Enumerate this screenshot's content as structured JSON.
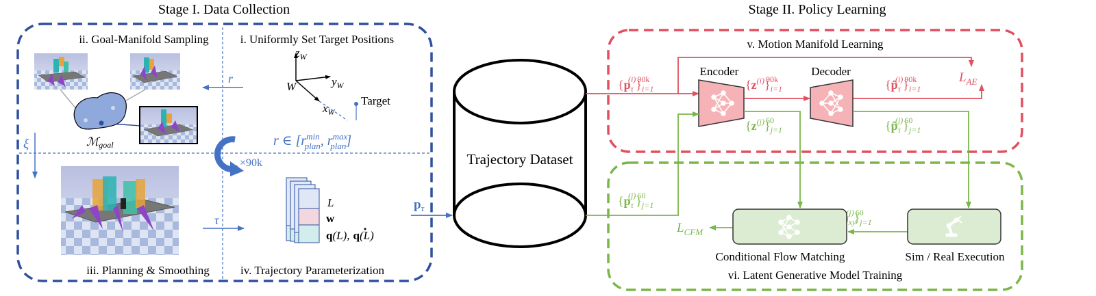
{
  "stage1": {
    "title": "Stage I. Data Collection",
    "goal_sampling": "ii. Goal-Manifold Sampling",
    "target_positions": "i. Uniformly Set Target Positions",
    "planning": "iii. Planning & Smoothing",
    "parameterization": "iv. Trajectory Parameterization",
    "manifold_symbol": "ℳ",
    "manifold_sub": "goal",
    "r": "r",
    "r_range": "r ∈ [",
    "r_min": "r",
    "r_min_sup": "min",
    "r_min_sub": "plan",
    "r_max_sup": "max",
    "r_max_sub": "plan",
    "xi": "ξ",
    "repeat": "×90k",
    "tau": "τ",
    "frame_z": "z",
    "frame_y": "y",
    "frame_x": "x",
    "frame_w": "W",
    "frame_origin": "W",
    "target_label": "Target",
    "param_L": "L",
    "param_w": "w",
    "param_q": "q",
    "param_q_tail": "(L),",
    "param_qdot_tail": "(L)"
  },
  "center": {
    "dataset_label": "Trajectory Dataset",
    "p_tau": "p",
    "p_tau_sub": "τ"
  },
  "stage2": {
    "title": "Stage II. Policy Learning",
    "motion_learning": "v. Motion Manifold Learning",
    "latent_training": "vi. Latent Generative Model Training",
    "encoder": "Encoder",
    "decoder": "Decoder",
    "l_ae": "L",
    "l_ae_sub": "AE",
    "l_cfm": "L",
    "l_cfm_sub": "CFM",
    "cfm_label": "Conditional Flow Matching",
    "exec_label": "Sim / Real Execution",
    "p_in_90k": "p",
    "z_90k": "z",
    "phat_90k": "p̂",
    "z_60": "z",
    "phat_60": "p̂",
    "p_in_60": "p",
    "p_exe": "p",
    "p_exe_sub": "exe",
    "idx_i": "(i)",
    "idx_j": "(j)",
    "range_i": "i=1",
    "range_j": "j=1",
    "n_90k": "90k",
    "n_60": "60",
    "sub_tau": "τ",
    "sub_xy": "xy"
  },
  "colors": {
    "blue": "#2f4f9f",
    "lightblue": "#4472c4",
    "red": "#e0505f",
    "green": "#7ab648",
    "pink": "#f5b3b8",
    "mint": "#dcecd2"
  }
}
